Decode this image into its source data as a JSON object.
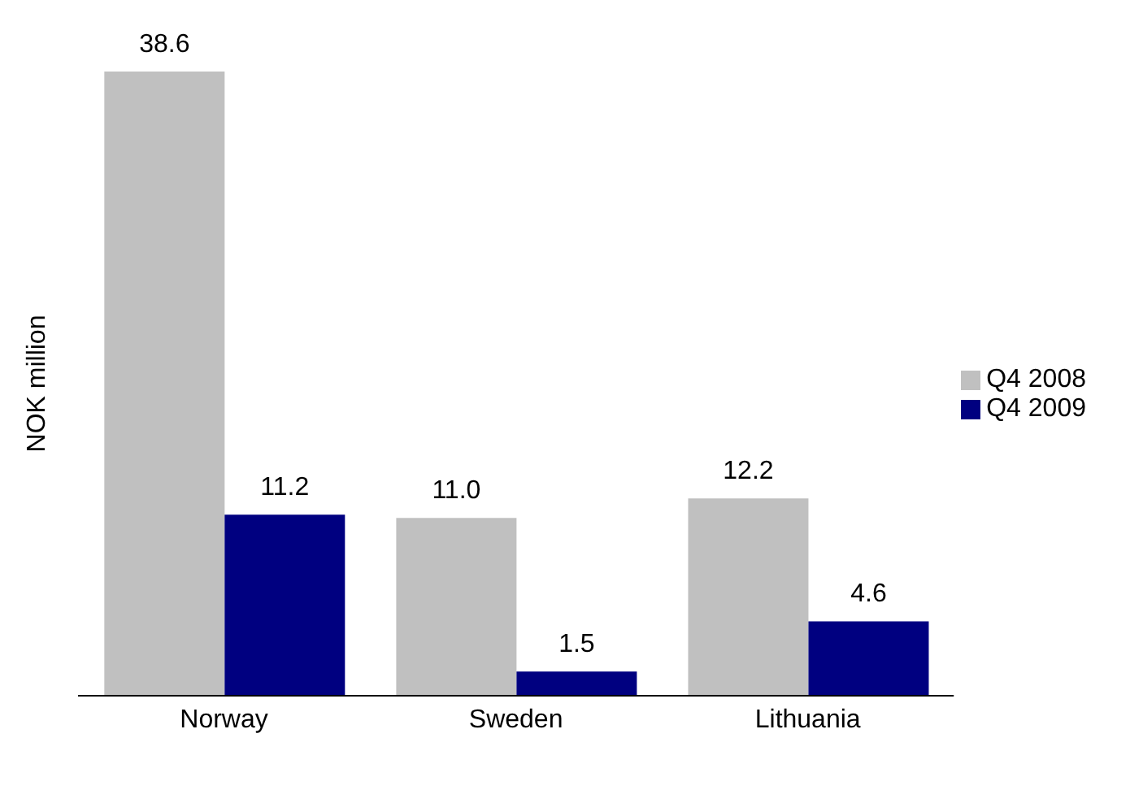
{
  "chart_data": {
    "type": "bar",
    "ylabel": "NOK million",
    "categories": [
      "Norway",
      "Sweden",
      "Lithuania"
    ],
    "series": [
      {
        "name": "Q4 2008",
        "color": "#c0c0c0",
        "values": [
          38.6,
          11.0,
          12.2
        ],
        "value_labels": [
          "38.6",
          "11.0",
          "12.2"
        ]
      },
      {
        "name": "Q4 2009",
        "color": "#000080",
        "values": [
          11.2,
          1.5,
          4.6
        ],
        "value_labels": [
          "11.2",
          "1.5",
          "4.6"
        ]
      }
    ],
    "ylim": [
      0,
      38.6
    ],
    "tick_labels": "x",
    "grid": false,
    "legend": "right"
  }
}
